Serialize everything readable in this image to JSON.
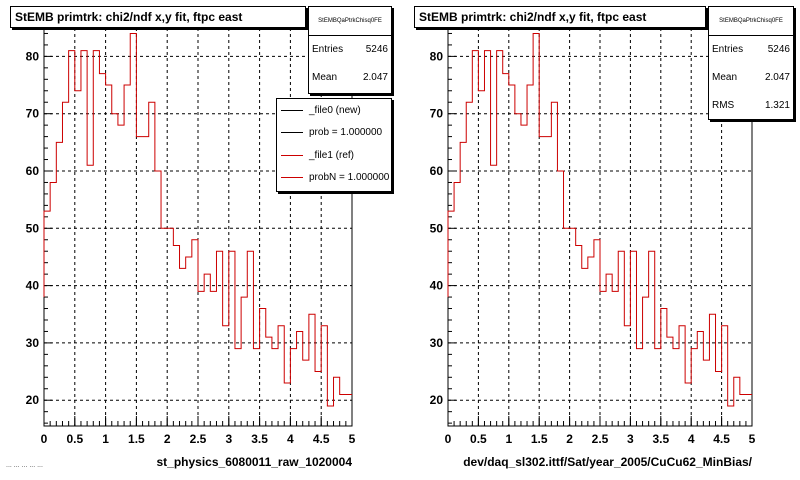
{
  "panels": [
    {
      "title": "StEMB primtrk: chi2/ndf x,y fit, ftpc east",
      "stats": {
        "name": "StEMBQaPtrkChisq0FE",
        "rows": [
          {
            "label": "Entries",
            "value": "5246"
          },
          {
            "label": "Mean",
            "value": "2.047"
          }
        ]
      },
      "legend": [
        {
          "label": "_file0 (new)",
          "color": "#000000"
        },
        {
          "label": "prob = 1.000000",
          "color": "#000000"
        },
        {
          "label": "_file1 (ref)",
          "color": "#cc0000"
        },
        {
          "label": "probN = 1.000000",
          "color": "#cc0000"
        }
      ],
      "xlabel": "st_physics_6080011_raw_1020004"
    },
    {
      "title": "StEMB primtrk: chi2/ndf x,y fit, ftpc east",
      "stats": {
        "name": "StEMBQaPtrkChisq0FE",
        "rows": [
          {
            "label": "Entries",
            "value": "5246"
          },
          {
            "label": "Mean",
            "value": "2.047"
          },
          {
            "label": "RMS",
            "value": "1.321"
          }
        ]
      },
      "legend": [],
      "xlabel": "dev/daq_sl302.ittf/Sat/year_2005/CuCu62_MinBias/"
    }
  ],
  "footer": "... ... ... ... ...",
  "chart_data": [
    {
      "type": "histogram",
      "title": "StEMB primtrk: chi2/ndf x,y fit, ftpc east",
      "xlabel": "st_physics_6080011_raw_1020004",
      "ylabel": "",
      "xlim": [
        0,
        5
      ],
      "ylim": [
        15.5,
        86
      ],
      "xticks": [
        "0",
        "0.5",
        "1",
        "1.5",
        "2",
        "2.5",
        "3",
        "3.5",
        "4",
        "4.5",
        "5"
      ],
      "yticks": [
        "20",
        "30",
        "40",
        "50",
        "60",
        "70",
        "80"
      ],
      "grid": true,
      "line_color": "#cc0000",
      "bin_edges": [
        0,
        0.1,
        0.2,
        0.3,
        0.4,
        0.5,
        0.6,
        0.7,
        0.8,
        0.9,
        1.0,
        1.1,
        1.2,
        1.3,
        1.4,
        1.5,
        1.6,
        1.7,
        1.8,
        1.9,
        2.0,
        2.1,
        2.2,
        2.3,
        2.4,
        2.5,
        2.6,
        2.7,
        2.8,
        2.9,
        3.0,
        3.1,
        3.2,
        3.3,
        3.4,
        3.5,
        3.6,
        3.7,
        3.8,
        3.9,
        4.0,
        4.1,
        4.2,
        4.3,
        4.4,
        4.5,
        4.6,
        4.7,
        4.8,
        4.9,
        5.0
      ],
      "values": [
        53,
        58,
        65,
        72,
        81,
        74,
        81,
        61,
        81,
        77,
        75,
        70,
        68,
        75,
        84,
        66,
        66,
        72,
        60,
        50,
        50,
        47,
        43,
        45,
        48,
        39,
        42,
        39,
        46,
        33,
        46,
        29,
        38,
        46,
        29,
        36,
        31,
        29,
        33,
        23,
        29,
        32,
        27,
        35,
        25,
        33,
        19,
        24,
        21,
        21
      ],
      "first_bin_low": 38,
      "stats": {
        "Entries": "5246",
        "Mean": "2.047"
      }
    },
    {
      "type": "histogram",
      "title": "StEMB primtrk: chi2/ndf x,y fit, ftpc east",
      "xlabel": "dev/daq_sl302.ittf/Sat/year_2005/CuCu62_MinBias/",
      "ylabel": "",
      "xlim": [
        0,
        5
      ],
      "ylim": [
        15.5,
        86
      ],
      "xticks": [
        "0",
        "0.5",
        "1",
        "1.5",
        "2",
        "2.5",
        "3",
        "3.5",
        "4",
        "4.5",
        "5"
      ],
      "yticks": [
        "20",
        "30",
        "40",
        "50",
        "60",
        "70",
        "80"
      ],
      "grid": true,
      "line_color": "#cc0000",
      "bin_edges": [
        0,
        0.1,
        0.2,
        0.3,
        0.4,
        0.5,
        0.6,
        0.7,
        0.8,
        0.9,
        1.0,
        1.1,
        1.2,
        1.3,
        1.4,
        1.5,
        1.6,
        1.7,
        1.8,
        1.9,
        2.0,
        2.1,
        2.2,
        2.3,
        2.4,
        2.5,
        2.6,
        2.7,
        2.8,
        2.9,
        3.0,
        3.1,
        3.2,
        3.3,
        3.4,
        3.5,
        3.6,
        3.7,
        3.8,
        3.9,
        4.0,
        4.1,
        4.2,
        4.3,
        4.4,
        4.5,
        4.6,
        4.7,
        4.8,
        4.9,
        5.0
      ],
      "values": [
        53,
        58,
        65,
        72,
        81,
        74,
        81,
        61,
        81,
        77,
        75,
        70,
        68,
        75,
        84,
        66,
        66,
        72,
        60,
        50,
        50,
        47,
        43,
        45,
        48,
        39,
        42,
        39,
        46,
        33,
        46,
        29,
        38,
        46,
        29,
        36,
        31,
        29,
        33,
        23,
        29,
        32,
        27,
        35,
        25,
        33,
        19,
        24,
        21,
        21
      ],
      "first_bin_low": 38,
      "stats": {
        "Entries": "5246",
        "Mean": "2.047",
        "RMS": "1.321"
      }
    }
  ]
}
